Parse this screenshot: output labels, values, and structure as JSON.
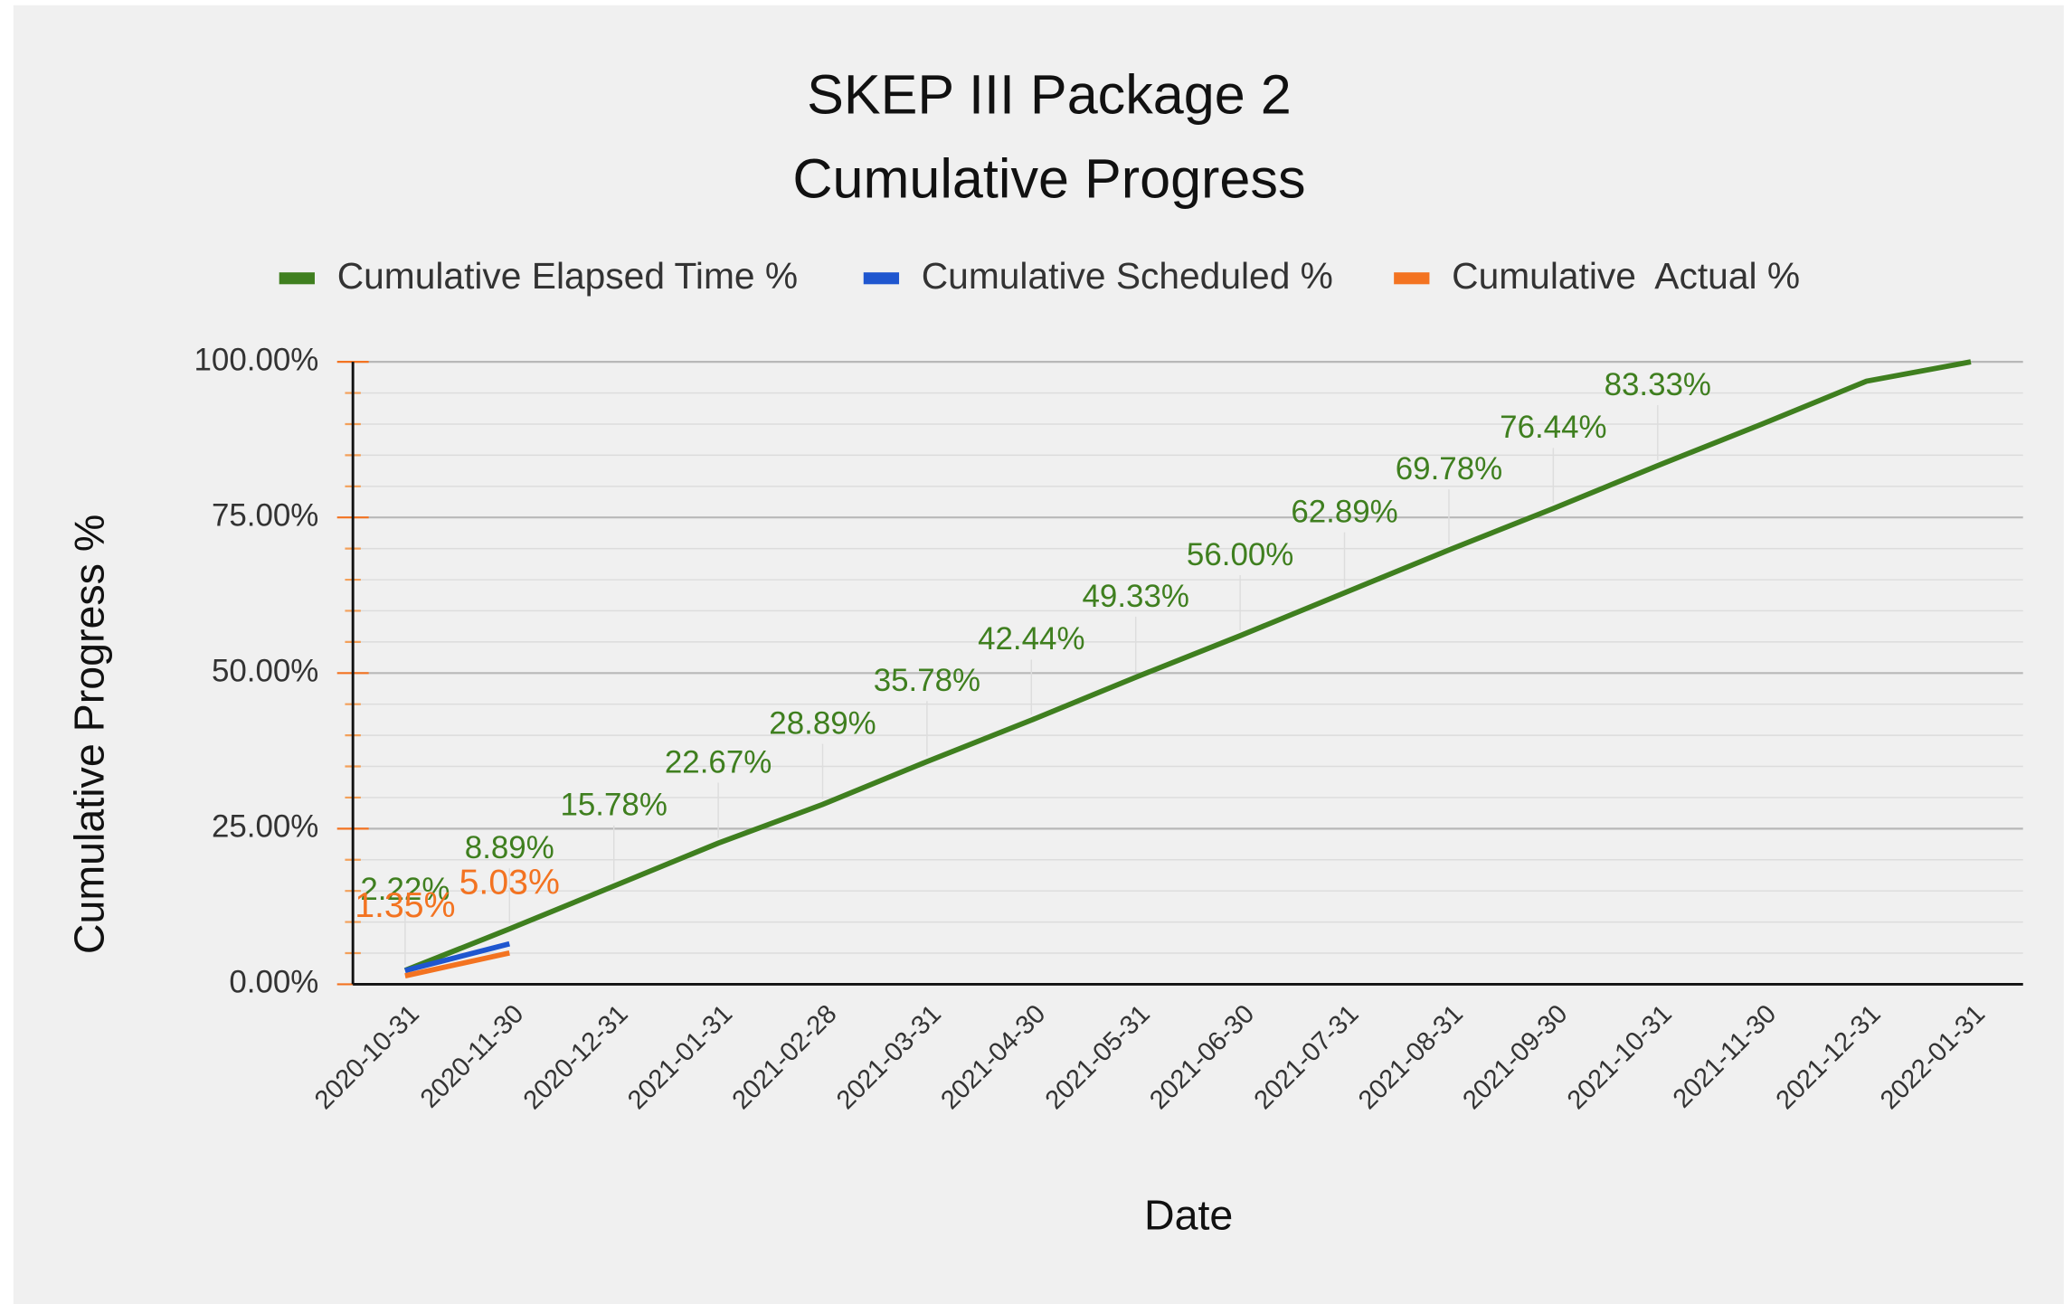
{
  "chart_data": {
    "type": "line",
    "title": "SKEP III Package 2",
    "subtitle": "Cumulative Progress",
    "x_label": "Date",
    "y_label": "Cumulative Progress %",
    "categories": [
      "2020-10-31",
      "2020-11-30",
      "2020-12-31",
      "2021-01-31",
      "2021-02-28",
      "2021-03-31",
      "2021-04-30",
      "2021-05-31",
      "2021-06-30",
      "2021-07-31",
      "2021-08-31",
      "2021-09-30",
      "2021-10-31",
      "2021-11-30",
      "2021-12-31",
      "2022-01-31"
    ],
    "series": [
      {
        "name": "Cumulative Elapsed Time %",
        "color": "#3f7f1f",
        "values": [
          2.22,
          8.89,
          15.78,
          22.67,
          28.89,
          35.78,
          42.44,
          49.33,
          56.0,
          62.89,
          69.78,
          76.44,
          83.33,
          90.0,
          96.89,
          100
        ],
        "value_labels": [
          "2.22%",
          "8.89%",
          "15.78%",
          "22.67%",
          "28.89%",
          "35.78%",
          "42.44%",
          "49.33%",
          "56.00%",
          "62.89%",
          "69.78%",
          "76.44%",
          "83.33%",
          null,
          null,
          null
        ]
      },
      {
        "name": "Cumulative Scheduled %",
        "color": "#1f56cf",
        "values": [
          2.2,
          6.5,
          null,
          null,
          null,
          null,
          null,
          null,
          null,
          null,
          null,
          null,
          null,
          null,
          null,
          null
        ]
      },
      {
        "name": "Cumulative  Actual %",
        "color": "#f37321",
        "values": [
          1.35,
          5.03,
          null,
          null,
          null,
          null,
          null,
          null,
          null,
          null,
          null,
          null,
          null,
          null,
          null,
          null
        ],
        "value_labels": [
          "1.35%",
          "5.03%",
          null,
          null,
          null,
          null,
          null,
          null,
          null,
          null,
          null,
          null,
          null,
          null,
          null,
          null
        ]
      }
    ],
    "ylim": [
      0,
      100
    ],
    "yticks": [
      {
        "value": 0,
        "label": "0.00%"
      },
      {
        "value": 25,
        "label": "25.00%"
      },
      {
        "value": 50,
        "label": "50.00%"
      },
      {
        "value": 75,
        "label": "75.00%"
      },
      {
        "value": 100,
        "label": "100.00%"
      }
    ],
    "minor_yticks": [
      5,
      10,
      15,
      20,
      30,
      35,
      40,
      45,
      55,
      60,
      65,
      70,
      80,
      85,
      90,
      95
    ],
    "grid": true,
    "legend": "top"
  }
}
